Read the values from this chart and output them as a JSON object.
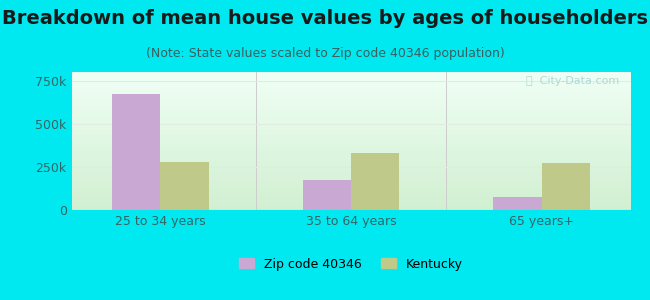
{
  "title": "Breakdown of mean house values by ages of householders",
  "subtitle": "(Note: State values scaled to Zip code 40346 population)",
  "categories": [
    "25 to 34 years",
    "35 to 64 years",
    "65 years+"
  ],
  "zip_values": [
    675000,
    175000,
    75000
  ],
  "ky_values": [
    280000,
    330000,
    275000
  ],
  "zip_color": "#c9a8d4",
  "ky_color": "#bec98a",
  "background_outer": "#00e8f0",
  "ylim": [
    0,
    800000
  ],
  "yticks": [
    0,
    250000,
    500000,
    750000
  ],
  "ytick_labels": [
    "0",
    "250k",
    "500k",
    "750k"
  ],
  "zip_label": "Zip code 40346",
  "ky_label": "Kentucky",
  "bar_width": 0.38,
  "title_fontsize": 14,
  "subtitle_fontsize": 9,
  "tick_fontsize": 9,
  "legend_fontsize": 9,
  "title_color": "#1a1a1a",
  "subtitle_color": "#3a6060",
  "tick_color": "#336666",
  "grid_color": "#e0ece0",
  "watermark_color": "#b0d8d8"
}
